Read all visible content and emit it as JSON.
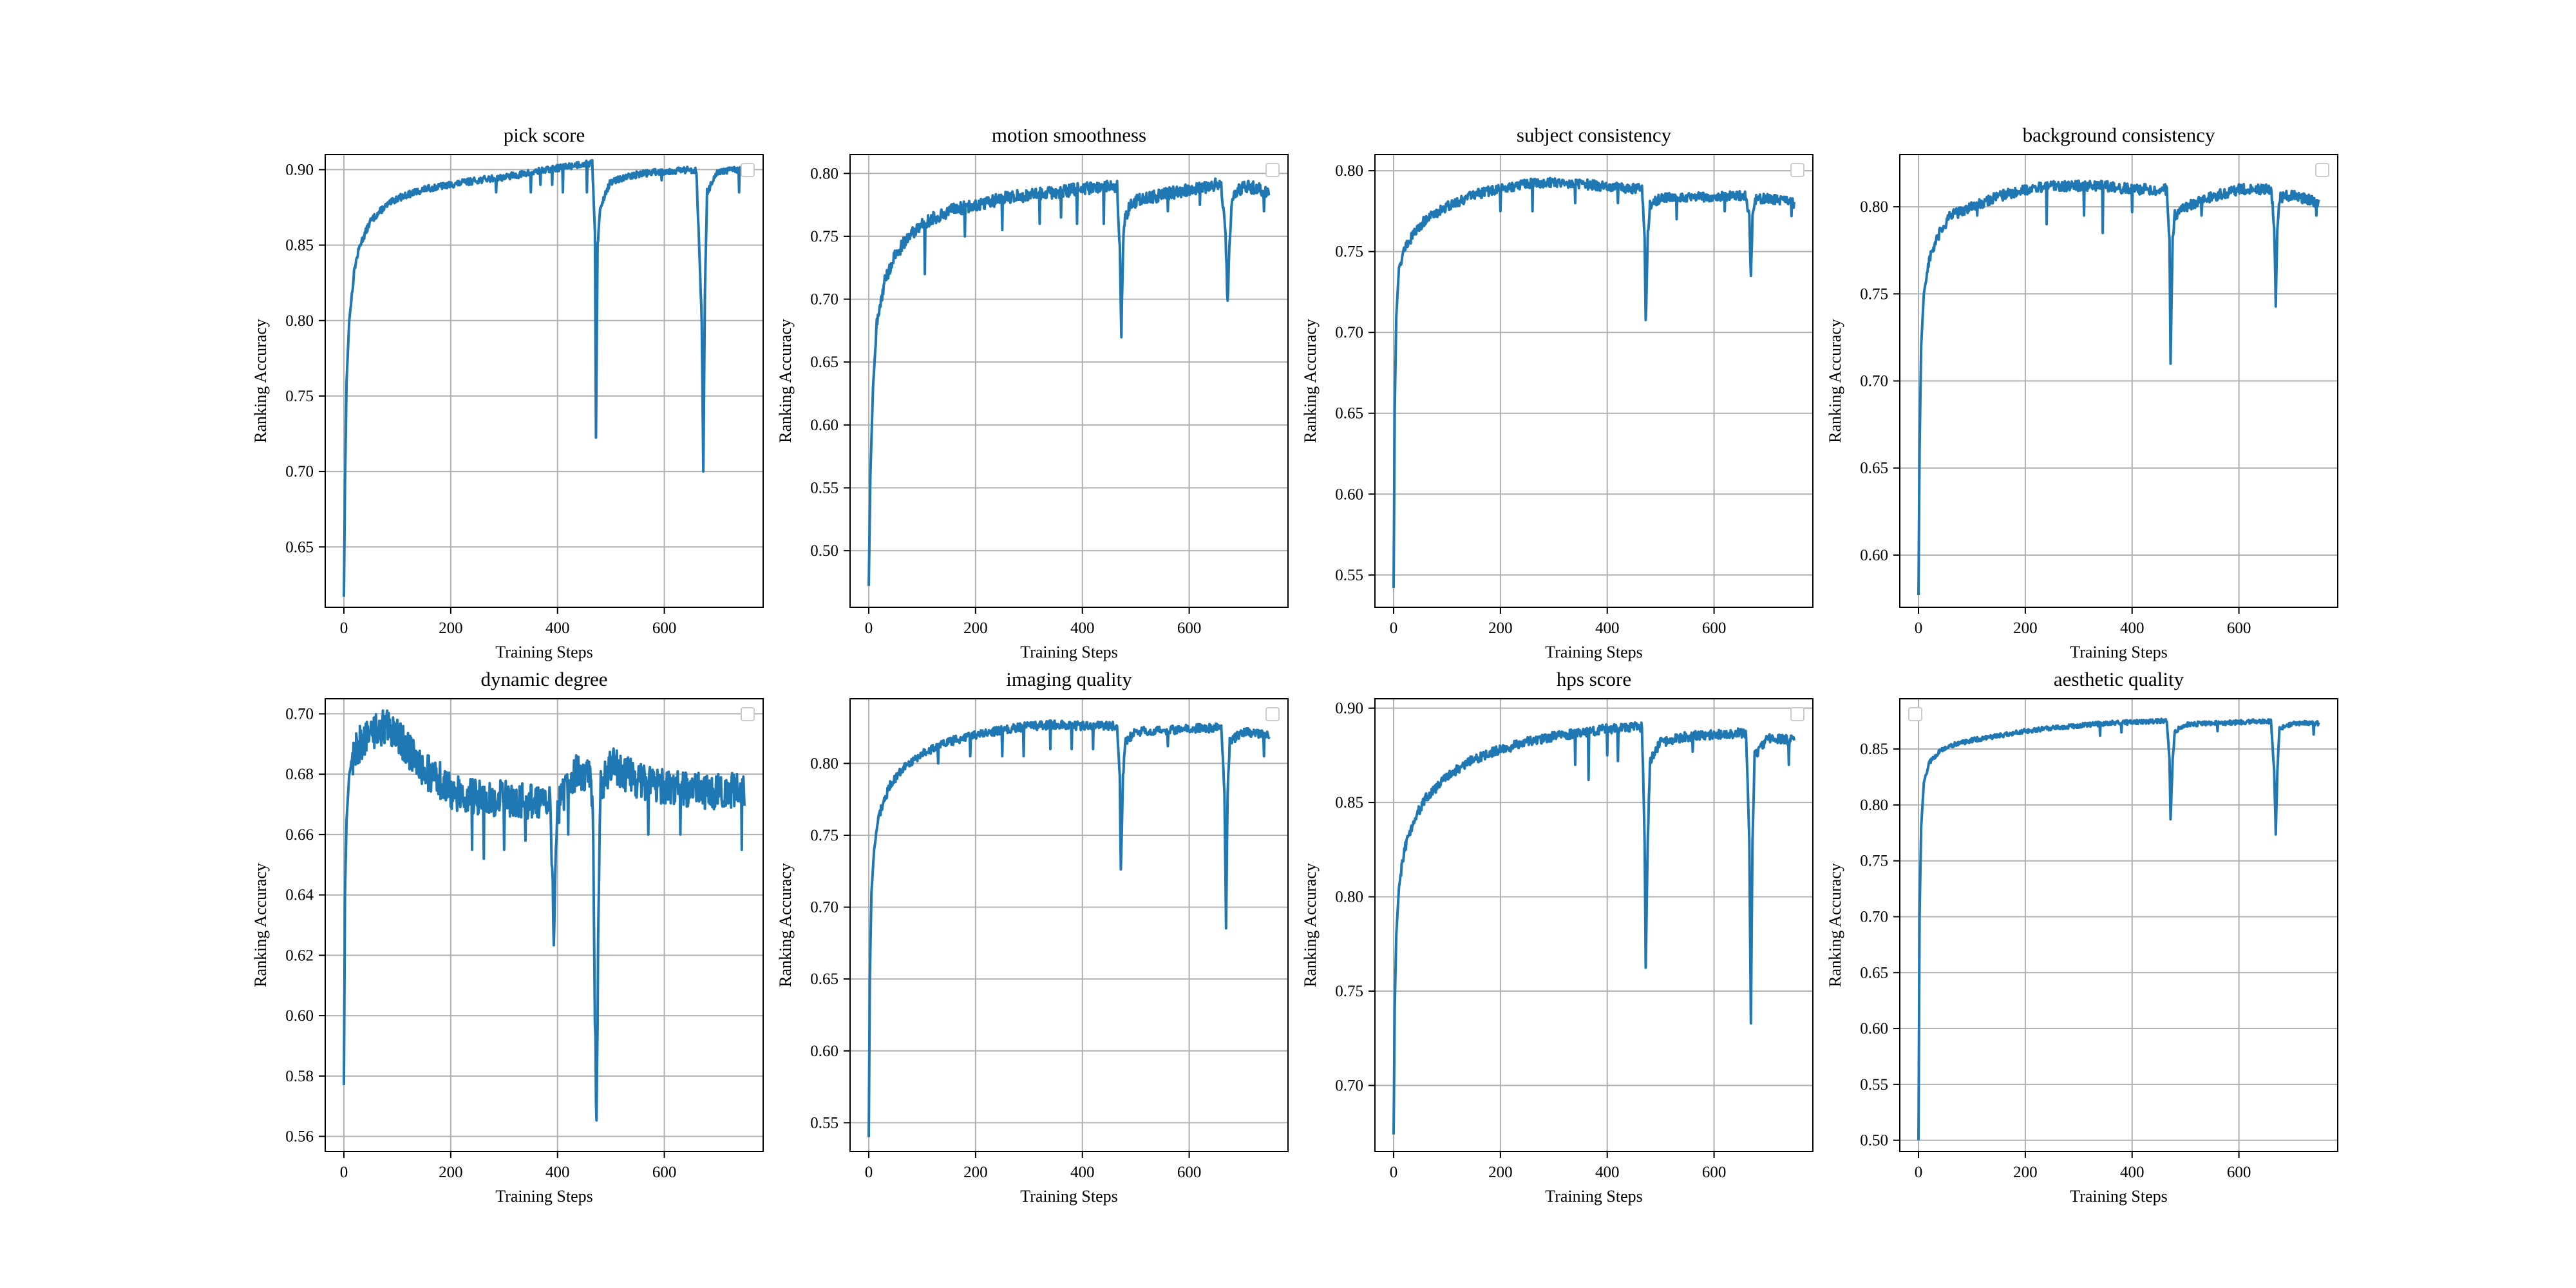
{
  "figure": {
    "colors": {
      "line": "#1f77b4",
      "grid": "#b0b0b0",
      "axes": "#000000",
      "legend_edge": "#cccccc"
    }
  },
  "chart_data": [
    {
      "type": "line",
      "title": "pick score",
      "xlabel": "Training Steps",
      "ylabel": "Ranking Accuracy",
      "xlim": [
        -35,
        785
      ],
      "ylim": [
        0.61,
        0.91
      ],
      "xticks": [
        0,
        200,
        400,
        600
      ],
      "yticks": [
        0.65,
        0.7,
        0.75,
        0.8,
        0.85,
        0.9
      ],
      "ytick_labels": [
        "0.65",
        "0.70",
        "0.75",
        "0.80",
        "0.85",
        "0.90"
      ],
      "grid": true,
      "legend": "upper right (empty)",
      "series": [
        {
          "x": [
            0,
            2,
            5,
            10,
            20,
            30,
            50,
            75,
            100,
            150,
            200,
            250,
            300,
            350,
            400,
            450,
            465,
            470,
            472,
            475,
            480,
            490,
            500,
            550,
            600,
            660,
            670,
            673,
            676,
            680,
            700,
            730,
            750
          ],
          "values": [
            0.617,
            0.69,
            0.76,
            0.8,
            0.835,
            0.85,
            0.866,
            0.875,
            0.881,
            0.887,
            0.89,
            0.893,
            0.895,
            0.898,
            0.901,
            0.904,
            0.904,
            0.86,
            0.723,
            0.85,
            0.874,
            0.885,
            0.892,
            0.897,
            0.899,
            0.9,
            0.8,
            0.698,
            0.82,
            0.885,
            0.898,
            0.9,
            0.9
          ],
          "noise": 0.0022,
          "dips": [
            [
              117,
              0.885
            ],
            [
              285,
              0.885
            ],
            [
              350,
              0.885
            ],
            [
              368,
              0.89
            ],
            [
              390,
              0.89
            ],
            [
              410,
              0.885
            ],
            [
              455,
              0.885
            ],
            [
              595,
              0.893
            ],
            [
              740,
              0.885
            ]
          ]
        }
      ]
    },
    {
      "type": "line",
      "title": "motion smoothness",
      "xlabel": "Training Steps",
      "ylabel": "Ranking Accuracy",
      "xlim": [
        -35,
        785
      ],
      "ylim": [
        0.455,
        0.815
      ],
      "xticks": [
        0,
        200,
        400,
        600
      ],
      "yticks": [
        0.5,
        0.55,
        0.6,
        0.65,
        0.7,
        0.75,
        0.8
      ],
      "ytick_labels": [
        "0.50",
        "0.55",
        "0.60",
        "0.65",
        "0.70",
        "0.75",
        "0.80"
      ],
      "grid": true,
      "legend": "upper right (empty)",
      "series": [
        {
          "x": [
            0,
            3,
            8,
            15,
            30,
            50,
            75,
            100,
            150,
            200,
            250,
            300,
            350,
            400,
            450,
            465,
            470,
            473,
            476,
            480,
            490,
            500,
            550,
            600,
            660,
            668,
            672,
            676,
            680,
            700,
            730,
            750
          ],
          "values": [
            0.472,
            0.56,
            0.63,
            0.68,
            0.715,
            0.735,
            0.75,
            0.76,
            0.77,
            0.775,
            0.78,
            0.783,
            0.785,
            0.788,
            0.79,
            0.79,
            0.74,
            0.673,
            0.74,
            0.765,
            0.775,
            0.778,
            0.783,
            0.787,
            0.792,
            0.75,
            0.696,
            0.75,
            0.78,
            0.79,
            0.788,
            0.785
          ],
          "noise": 0.005,
          "dips": [
            [
              105,
              0.72
            ],
            [
              180,
              0.75
            ],
            [
              250,
              0.755
            ],
            [
              320,
              0.76
            ],
            [
              360,
              0.765
            ],
            [
              390,
              0.76
            ],
            [
              440,
              0.76
            ],
            [
              560,
              0.77
            ],
            [
              620,
              0.775
            ],
            [
              740,
              0.77
            ]
          ]
        }
      ]
    },
    {
      "type": "line",
      "title": "subject consistency",
      "xlabel": "Training Steps",
      "ylabel": "Ranking Accuracy",
      "xlim": [
        -35,
        785
      ],
      "ylim": [
        0.53,
        0.81
      ],
      "xticks": [
        0,
        200,
        400,
        600
      ],
      "yticks": [
        0.55,
        0.6,
        0.65,
        0.7,
        0.75,
        0.8
      ],
      "ytick_labels": [
        "0.55",
        "0.60",
        "0.65",
        "0.70",
        "0.75",
        "0.80"
      ],
      "grid": true,
      "legend": "upper right (empty)",
      "series": [
        {
          "x": [
            0,
            2,
            5,
            10,
            20,
            40,
            60,
            100,
            150,
            200,
            250,
            300,
            350,
            400,
            450,
            465,
            470,
            472,
            476,
            480,
            500,
            550,
            600,
            660,
            666,
            669,
            672,
            676,
            700,
            750
          ],
          "values": [
            0.542,
            0.65,
            0.71,
            0.74,
            0.752,
            0.762,
            0.77,
            0.778,
            0.785,
            0.789,
            0.792,
            0.793,
            0.792,
            0.79,
            0.789,
            0.789,
            0.76,
            0.706,
            0.76,
            0.779,
            0.783,
            0.784,
            0.784,
            0.785,
            0.77,
            0.733,
            0.77,
            0.782,
            0.783,
            0.78
          ],
          "noise": 0.003,
          "dips": [
            [
              200,
              0.775
            ],
            [
              260,
              0.775
            ],
            [
              340,
              0.78
            ],
            [
              420,
              0.78
            ],
            [
              530,
              0.77
            ],
            [
              620,
              0.775
            ],
            [
              745,
              0.772
            ]
          ]
        }
      ]
    },
    {
      "type": "line",
      "title": "background consistency",
      "xlabel": "Training Steps",
      "ylabel": "Ranking Accuracy",
      "xlim": [
        -35,
        785
      ],
      "ylim": [
        0.57,
        0.83
      ],
      "xticks": [
        0,
        200,
        400,
        600
      ],
      "yticks": [
        0.6,
        0.65,
        0.7,
        0.75,
        0.8
      ],
      "ytick_labels": [
        "0.60",
        "0.65",
        "0.70",
        "0.75",
        "0.80"
      ],
      "grid": true,
      "legend": "upper right (empty)",
      "series": [
        {
          "x": [
            0,
            2,
            5,
            10,
            20,
            40,
            60,
            100,
            150,
            200,
            250,
            300,
            350,
            400,
            450,
            465,
            470,
            472,
            476,
            480,
            500,
            550,
            600,
            660,
            666,
            669,
            672,
            676,
            700,
            750
          ],
          "values": [
            0.577,
            0.66,
            0.72,
            0.75,
            0.77,
            0.785,
            0.795,
            0.8,
            0.806,
            0.81,
            0.812,
            0.812,
            0.812,
            0.81,
            0.81,
            0.81,
            0.78,
            0.71,
            0.78,
            0.795,
            0.8,
            0.806,
            0.81,
            0.81,
            0.79,
            0.744,
            0.79,
            0.805,
            0.807,
            0.802
          ],
          "noise": 0.003,
          "dips": [
            [
              110,
              0.795
            ],
            [
              240,
              0.79
            ],
            [
              310,
              0.795
            ],
            [
              345,
              0.785
            ],
            [
              400,
              0.797
            ],
            [
              530,
              0.795
            ],
            [
              745,
              0.795
            ]
          ]
        }
      ]
    },
    {
      "type": "line",
      "title": "dynamic degree",
      "xlabel": "Training Steps",
      "ylabel": "Ranking Accuracy",
      "xlim": [
        -35,
        785
      ],
      "ylim": [
        0.555,
        0.705
      ],
      "xticks": [
        0,
        200,
        400,
        600
      ],
      "yticks": [
        0.56,
        0.58,
        0.6,
        0.62,
        0.64,
        0.66,
        0.68,
        0.7
      ],
      "ytick_labels": [
        "0.56",
        "0.58",
        "0.60",
        "0.62",
        "0.64",
        "0.66",
        "0.68",
        "0.70"
      ],
      "grid": true,
      "legend": "upper right (empty)",
      "series": [
        {
          "x": [
            0,
            2,
            5,
            10,
            20,
            40,
            60,
            80,
            100,
            120,
            140,
            160,
            180,
            200,
            250,
            300,
            350,
            385,
            390,
            393,
            396,
            400,
            420,
            440,
            460,
            466,
            470,
            473,
            476,
            480,
            500,
            550,
            600,
            650,
            700,
            730,
            750
          ],
          "values": [
            0.577,
            0.64,
            0.665,
            0.68,
            0.688,
            0.692,
            0.694,
            0.696,
            0.693,
            0.688,
            0.683,
            0.68,
            0.678,
            0.674,
            0.672,
            0.672,
            0.671,
            0.672,
            0.65,
            0.618,
            0.65,
            0.668,
            0.678,
            0.681,
            0.68,
            0.67,
            0.6,
            0.563,
            0.62,
            0.675,
            0.683,
            0.678,
            0.676,
            0.675,
            0.674,
            0.675,
            0.675
          ],
          "noise": 0.006,
          "dips": [
            [
              240,
              0.655
            ],
            [
              262,
              0.652
            ],
            [
              300,
              0.655
            ],
            [
              340,
              0.658
            ],
            [
              420,
              0.66
            ],
            [
              570,
              0.66
            ],
            [
              630,
              0.66
            ],
            [
              745,
              0.655
            ]
          ]
        }
      ]
    },
    {
      "type": "line",
      "title": "imaging quality",
      "xlabel": "Training Steps",
      "ylabel": "Ranking Accuracy",
      "xlim": [
        -35,
        785
      ],
      "ylim": [
        0.53,
        0.845
      ],
      "xticks": [
        0,
        200,
        400,
        600
      ],
      "yticks": [
        0.55,
        0.6,
        0.65,
        0.7,
        0.75,
        0.8
      ],
      "ytick_labels": [
        "0.55",
        "0.60",
        "0.65",
        "0.70",
        "0.75",
        "0.80"
      ],
      "grid": true,
      "legend": "upper right (empty)",
      "series": [
        {
          "x": [
            0,
            2,
            5,
            10,
            20,
            40,
            60,
            100,
            150,
            200,
            250,
            300,
            350,
            400,
            450,
            465,
            470,
            472,
            476,
            480,
            500,
            550,
            600,
            660,
            666,
            669,
            672,
            676,
            700,
            750
          ],
          "values": [
            0.54,
            0.65,
            0.71,
            0.74,
            0.765,
            0.785,
            0.795,
            0.807,
            0.815,
            0.82,
            0.823,
            0.826,
            0.827,
            0.826,
            0.826,
            0.826,
            0.79,
            0.724,
            0.79,
            0.815,
            0.822,
            0.823,
            0.824,
            0.825,
            0.78,
            0.687,
            0.78,
            0.815,
            0.822,
            0.82
          ],
          "noise": 0.003,
          "dips": [
            [
              130,
              0.8
            ],
            [
              190,
              0.805
            ],
            [
              250,
              0.805
            ],
            [
              290,
              0.805
            ],
            [
              340,
              0.81
            ],
            [
              380,
              0.81
            ],
            [
              420,
              0.81
            ],
            [
              560,
              0.812
            ],
            [
              740,
              0.805
            ]
          ]
        }
      ]
    },
    {
      "type": "line",
      "title": "hps score",
      "xlabel": "Training Steps",
      "ylabel": "Ranking Accuracy",
      "xlim": [
        -35,
        785
      ],
      "ylim": [
        0.665,
        0.905
      ],
      "xticks": [
        0,
        200,
        400,
        600
      ],
      "yticks": [
        0.7,
        0.75,
        0.8,
        0.85,
        0.9
      ],
      "ytick_labels": [
        "0.70",
        "0.75",
        "0.80",
        "0.85",
        "0.90"
      ],
      "grid": true,
      "legend": "upper right (empty)",
      "series": [
        {
          "x": [
            0,
            2,
            5,
            10,
            20,
            40,
            60,
            100,
            150,
            200,
            250,
            300,
            350,
            400,
            450,
            465,
            470,
            472,
            476,
            480,
            500,
            550,
            600,
            660,
            666,
            669,
            672,
            676,
            700,
            750
          ],
          "values": [
            0.674,
            0.74,
            0.78,
            0.805,
            0.825,
            0.842,
            0.852,
            0.864,
            0.873,
            0.878,
            0.882,
            0.885,
            0.887,
            0.889,
            0.89,
            0.89,
            0.83,
            0.762,
            0.83,
            0.872,
            0.882,
            0.885,
            0.886,
            0.887,
            0.83,
            0.732,
            0.83,
            0.875,
            0.884,
            0.883
          ],
          "noise": 0.0025,
          "dips": [
            [
              340,
              0.87
            ],
            [
              365,
              0.862
            ],
            [
              400,
              0.875
            ],
            [
              420,
              0.872
            ],
            [
              560,
              0.877
            ],
            [
              740,
              0.87
            ]
          ]
        }
      ]
    },
    {
      "type": "line",
      "title": "aesthetic quality",
      "xlabel": "Training Steps",
      "ylabel": "Ranking Accuracy",
      "xlim": [
        -35,
        785
      ],
      "ylim": [
        0.49,
        0.895
      ],
      "xticks": [
        0,
        200,
        400,
        600
      ],
      "yticks": [
        0.5,
        0.55,
        0.6,
        0.65,
        0.7,
        0.75,
        0.8,
        0.85
      ],
      "ytick_labels": [
        "0.50",
        "0.55",
        "0.60",
        "0.65",
        "0.70",
        "0.75",
        "0.80",
        "0.85"
      ],
      "grid": true,
      "legend": "upper left (empty)",
      "series": [
        {
          "x": [
            0,
            2,
            5,
            10,
            20,
            40,
            60,
            100,
            150,
            200,
            250,
            300,
            350,
            400,
            450,
            465,
            470,
            472,
            476,
            480,
            500,
            550,
            600,
            660,
            666,
            669,
            672,
            676,
            700,
            750
          ],
          "values": [
            0.5,
            0.7,
            0.78,
            0.82,
            0.838,
            0.848,
            0.853,
            0.858,
            0.862,
            0.866,
            0.869,
            0.871,
            0.873,
            0.874,
            0.875,
            0.875,
            0.84,
            0.788,
            0.84,
            0.866,
            0.872,
            0.873,
            0.874,
            0.875,
            0.83,
            0.775,
            0.83,
            0.868,
            0.873,
            0.873
          ],
          "noise": 0.002,
          "dips": [
            [
              340,
              0.862
            ],
            [
              380,
              0.865
            ],
            [
              560,
              0.866
            ],
            [
              740,
              0.863
            ]
          ]
        }
      ]
    }
  ]
}
